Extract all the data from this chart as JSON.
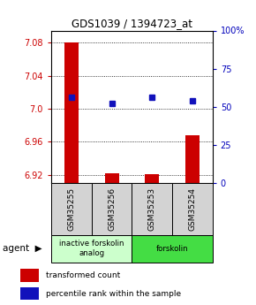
{
  "title": "GDS1039 / 1394723_at",
  "samples": [
    "GSM35255",
    "GSM35256",
    "GSM35253",
    "GSM35254"
  ],
  "red_values": [
    7.08,
    6.922,
    6.921,
    6.968
  ],
  "blue_values": [
    56,
    52,
    56,
    54
  ],
  "ylim_left": [
    6.91,
    7.095
  ],
  "ylim_right": [
    0,
    100
  ],
  "yticks_left": [
    6.92,
    6.96,
    7.0,
    7.04,
    7.08
  ],
  "yticks_right": [
    0,
    25,
    50,
    75,
    100
  ],
  "red_color": "#cc0000",
  "blue_color": "#1111bb",
  "bar_width": 0.35,
  "left_tick_color": "#cc0000",
  "right_tick_color": "#0000bb",
  "groups_info": [
    [
      0,
      2,
      "inactive forskolin\nanalog",
      "#ccffcc"
    ],
    [
      2,
      4,
      "forskolin",
      "#44dd44"
    ]
  ],
  "sample_box_color": "#d3d3d3",
  "agent_label": "agent",
  "legend_items": [
    "transformed count",
    "percentile rank within the sample"
  ]
}
